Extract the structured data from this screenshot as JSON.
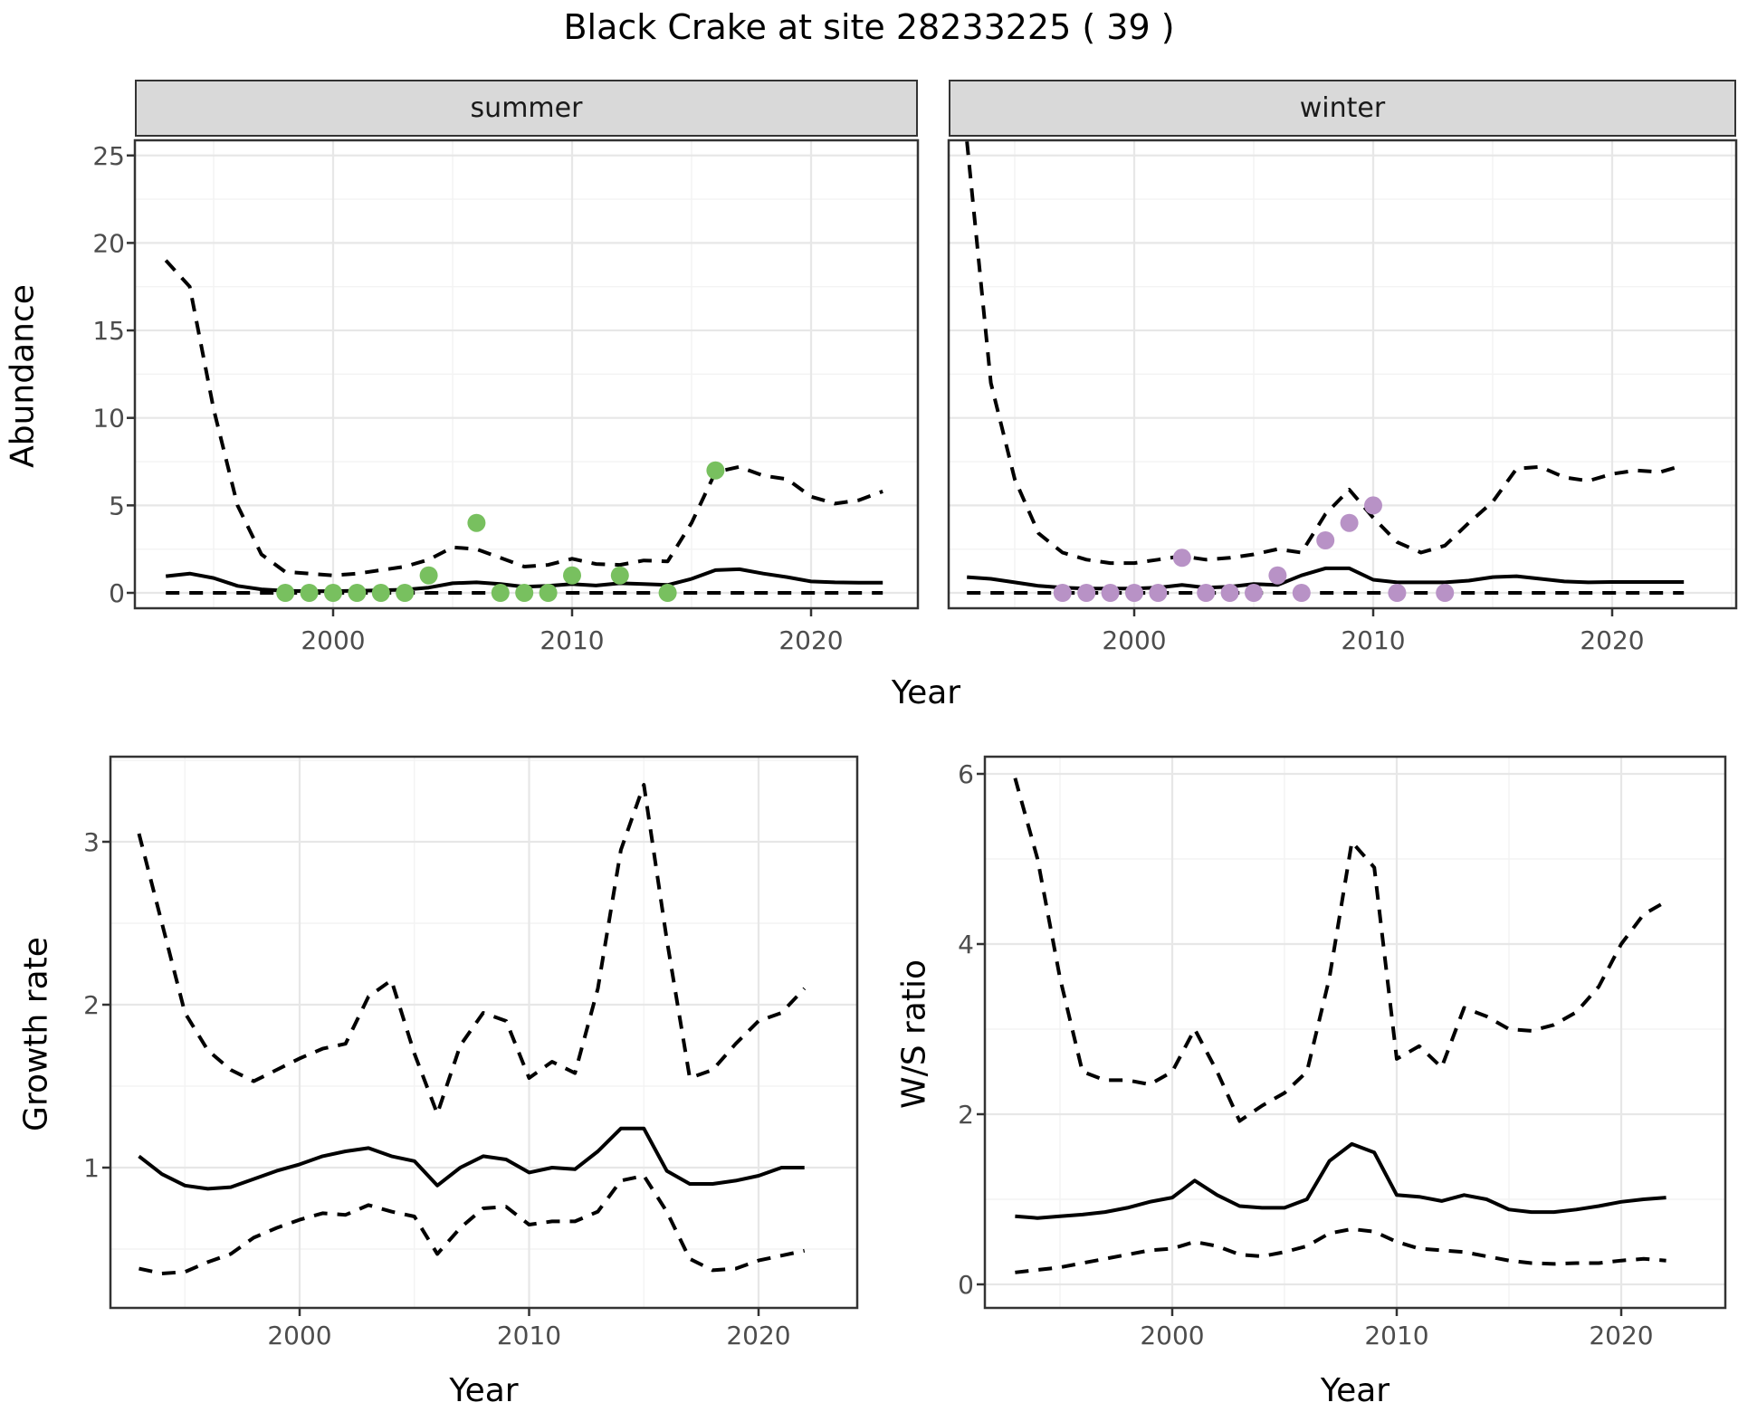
{
  "title": "Black Crake at site 28233225 ( 39 )",
  "point_colors": {
    "summer": "#78C05F",
    "winter": "#B892C6"
  },
  "line_color": "#000000",
  "grid_major_color": "#E7E7E7",
  "grid_minor_color": "#F3F3F3",
  "strip_fill": "#D9D9D9",
  "axis_text_color": "#4D4D4D",
  "chart_data": [
    {
      "id": "abundance-summer",
      "type": "line",
      "strip_label": "summer",
      "xlabel": "Year",
      "ylabel": "Abundance",
      "x_major_ticks": [
        2000,
        2010,
        2020
      ],
      "x_minor_ticks": [
        1995,
        2005,
        2015,
        2025
      ],
      "y_major_ticks": [
        0,
        5,
        10,
        15,
        20,
        25
      ],
      "y_minor_ticks": [
        2.5,
        7.5,
        12.5,
        17.5,
        22.5
      ],
      "show_y_tick_labels": true,
      "ylim": [
        -0.9,
        25.9
      ],
      "years": [
        1993,
        1994,
        1995,
        1996,
        1997,
        1998,
        1999,
        2000,
        2001,
        2002,
        2003,
        2004,
        2005,
        2006,
        2007,
        2008,
        2009,
        2010,
        2011,
        2012,
        2013,
        2014,
        2015,
        2016,
        2017,
        2018,
        2019,
        2020,
        2021,
        2022,
        2023
      ],
      "series": [
        {
          "name": "upper_ci",
          "style": "dashed",
          "values": [
            19,
            17.5,
            10.5,
            5,
            2.2,
            1.2,
            1.1,
            1.0,
            1.1,
            1.3,
            1.5,
            1.9,
            2.6,
            2.5,
            2.0,
            1.5,
            1.6,
            1.95,
            1.65,
            1.6,
            1.85,
            1.8,
            4.0,
            6.9,
            7.2,
            6.7,
            6.5,
            5.5,
            5.1,
            5.3,
            5.8
          ]
        },
        {
          "name": "median",
          "style": "solid",
          "values": [
            0.95,
            1.1,
            0.85,
            0.4,
            0.2,
            0.12,
            0.1,
            0.1,
            0.12,
            0.15,
            0.18,
            0.3,
            0.55,
            0.6,
            0.5,
            0.35,
            0.4,
            0.5,
            0.42,
            0.55,
            0.5,
            0.45,
            0.8,
            1.3,
            1.35,
            1.1,
            0.9,
            0.65,
            0.6,
            0.58,
            0.58
          ]
        },
        {
          "name": "lower_ci",
          "style": "dashed",
          "values": [
            0,
            0,
            0,
            0,
            0,
            0,
            0,
            0,
            0,
            0,
            0,
            0,
            0,
            0,
            0,
            0,
            0,
            0,
            0,
            0,
            0,
            0,
            0,
            0,
            0,
            0,
            0,
            0,
            0,
            0,
            0
          ]
        }
      ],
      "points": {
        "name": "observed_counts",
        "color_key": "summer",
        "data": [
          [
            1998,
            0
          ],
          [
            1999,
            0
          ],
          [
            2000,
            0
          ],
          [
            2001,
            0
          ],
          [
            2002,
            0
          ],
          [
            2003,
            0
          ],
          [
            2004,
            1
          ],
          [
            2006,
            4
          ],
          [
            2007,
            0
          ],
          [
            2008,
            0
          ],
          [
            2009,
            0
          ],
          [
            2010,
            1
          ],
          [
            2012,
            1
          ],
          [
            2014,
            0
          ],
          [
            2016,
            7
          ]
        ]
      }
    },
    {
      "id": "abundance-winter",
      "type": "line",
      "strip_label": "winter",
      "xlabel": "Year",
      "ylabel": "Abundance",
      "x_major_ticks": [
        2000,
        2010,
        2020
      ],
      "x_minor_ticks": [
        1995,
        2005,
        2015,
        2025
      ],
      "y_major_ticks": [
        0,
        5,
        10,
        15,
        20,
        25
      ],
      "y_minor_ticks": [
        2.5,
        7.5,
        12.5,
        17.5,
        22.5
      ],
      "show_y_tick_labels": false,
      "ylim": [
        -0.9,
        25.9
      ],
      "years": [
        1993,
        1994,
        1995,
        1996,
        1997,
        1998,
        1999,
        2000,
        2001,
        2002,
        2003,
        2004,
        2005,
        2006,
        2007,
        2008,
        2009,
        2010,
        2011,
        2012,
        2013,
        2014,
        2015,
        2016,
        2017,
        2018,
        2019,
        2020,
        2021,
        2022,
        2023
      ],
      "series": [
        {
          "name": "upper_ci",
          "style": "dashed",
          "values": [
            25.8,
            12,
            6.5,
            3.4,
            2.3,
            1.9,
            1.7,
            1.7,
            1.9,
            2.1,
            1.9,
            2.0,
            2.2,
            2.5,
            2.3,
            4.5,
            5.9,
            4.3,
            2.9,
            2.3,
            2.7,
            4.0,
            5.2,
            7.1,
            7.2,
            6.6,
            6.4,
            6.8,
            7.0,
            6.9,
            7.3
          ]
        },
        {
          "name": "median",
          "style": "solid",
          "values": [
            0.9,
            0.8,
            0.6,
            0.4,
            0.3,
            0.25,
            0.25,
            0.25,
            0.3,
            0.45,
            0.3,
            0.35,
            0.5,
            0.45,
            1.0,
            1.4,
            1.4,
            0.75,
            0.6,
            0.6,
            0.6,
            0.7,
            0.9,
            0.95,
            0.8,
            0.65,
            0.6,
            0.62,
            0.62,
            0.62,
            0.62
          ]
        },
        {
          "name": "lower_ci",
          "style": "dashed",
          "values": [
            0,
            0,
            0,
            0,
            0,
            0,
            0,
            0,
            0,
            0,
            0,
            0,
            0,
            0,
            0,
            0,
            0,
            0,
            0,
            0,
            0,
            0,
            0,
            0,
            0,
            0,
            0,
            0,
            0,
            0,
            0
          ]
        }
      ],
      "points": {
        "name": "observed_counts",
        "color_key": "winter",
        "data": [
          [
            1997,
            0
          ],
          [
            1998,
            0
          ],
          [
            1999,
            0
          ],
          [
            2000,
            0
          ],
          [
            2001,
            0
          ],
          [
            2002,
            2
          ],
          [
            2003,
            0
          ],
          [
            2004,
            0
          ],
          [
            2005,
            0
          ],
          [
            2006,
            1
          ],
          [
            2007,
            0
          ],
          [
            2008,
            3
          ],
          [
            2009,
            4
          ],
          [
            2010,
            5
          ],
          [
            2011,
            0
          ],
          [
            2013,
            0
          ]
        ]
      }
    },
    {
      "id": "growth-rate",
      "type": "line",
      "strip_label": "",
      "xlabel": "Year",
      "ylabel": "Growth rate",
      "x_major_ticks": [
        2000,
        2010,
        2020
      ],
      "x_minor_ticks": [
        1995,
        2005,
        2015
      ],
      "y_major_ticks": [
        1,
        2,
        3
      ],
      "y_minor_ticks": [
        0.5,
        1.5,
        2.5,
        3.5
      ],
      "show_y_tick_labels": true,
      "ylim": [
        0.14,
        3.52
      ],
      "years": [
        1993,
        1994,
        1995,
        1996,
        1997,
        1998,
        1999,
        2000,
        2001,
        2002,
        2003,
        2004,
        2005,
        2006,
        2007,
        2008,
        2009,
        2010,
        2011,
        2012,
        2013,
        2014,
        2015,
        2016,
        2017,
        2018,
        2019,
        2020,
        2021,
        2022
      ],
      "series": [
        {
          "name": "upper_ci",
          "style": "dashed",
          "values": [
            3.05,
            2.5,
            1.95,
            1.72,
            1.6,
            1.53,
            1.6,
            1.67,
            1.73,
            1.76,
            2.05,
            2.15,
            1.7,
            1.33,
            1.75,
            1.95,
            1.9,
            1.55,
            1.65,
            1.58,
            2.1,
            2.95,
            3.35,
            2.4,
            1.55,
            1.6,
            1.76,
            1.9,
            1.95,
            2.1
          ]
        },
        {
          "name": "median",
          "style": "solid",
          "values": [
            1.07,
            0.96,
            0.89,
            0.87,
            0.88,
            0.93,
            0.98,
            1.02,
            1.07,
            1.1,
            1.12,
            1.07,
            1.04,
            0.89,
            1.0,
            1.07,
            1.05,
            0.97,
            1.0,
            0.99,
            1.1,
            1.24,
            1.24,
            0.98,
            0.9,
            0.9,
            0.92,
            0.95,
            1.0,
            1.0
          ]
        },
        {
          "name": "lower_ci",
          "style": "dashed",
          "values": [
            0.38,
            0.35,
            0.36,
            0.42,
            0.47,
            0.57,
            0.63,
            0.68,
            0.72,
            0.71,
            0.77,
            0.73,
            0.7,
            0.47,
            0.63,
            0.75,
            0.76,
            0.65,
            0.67,
            0.67,
            0.73,
            0.92,
            0.95,
            0.73,
            0.44,
            0.37,
            0.38,
            0.43,
            0.46,
            0.49
          ]
        }
      ],
      "points": null
    },
    {
      "id": "ws-ratio",
      "type": "line",
      "strip_label": "",
      "xlabel": "Year",
      "ylabel": "W/S ratio",
      "x_major_ticks": [
        2000,
        2010,
        2020
      ],
      "x_minor_ticks": [
        1995,
        2005,
        2015
      ],
      "y_major_ticks": [
        0,
        2,
        4,
        6
      ],
      "y_minor_ticks": [
        1,
        3,
        5
      ],
      "show_y_tick_labels": true,
      "ylim": [
        -0.28,
        6.2
      ],
      "years": [
        1993,
        1994,
        1995,
        1996,
        1997,
        1998,
        1999,
        2000,
        2001,
        2002,
        2003,
        2004,
        2005,
        2006,
        2007,
        2008,
        2009,
        2010,
        2011,
        2012,
        2013,
        2014,
        2015,
        2016,
        2017,
        2018,
        2019,
        2020,
        2021,
        2022
      ],
      "series": [
        {
          "name": "upper_ci",
          "style": "dashed",
          "values": [
            5.95,
            5.0,
            3.6,
            2.5,
            2.4,
            2.4,
            2.35,
            2.5,
            3.0,
            2.5,
            1.92,
            2.1,
            2.25,
            2.5,
            3.6,
            5.2,
            4.9,
            2.65,
            2.8,
            2.55,
            3.25,
            3.15,
            3.0,
            2.98,
            3.05,
            3.2,
            3.5,
            4.0,
            4.35,
            4.5
          ]
        },
        {
          "name": "median",
          "style": "solid",
          "values": [
            0.8,
            0.78,
            0.8,
            0.82,
            0.85,
            0.9,
            0.97,
            1.02,
            1.22,
            1.05,
            0.92,
            0.9,
            0.9,
            1.0,
            1.45,
            1.65,
            1.55,
            1.05,
            1.03,
            0.98,
            1.05,
            1.0,
            0.88,
            0.85,
            0.85,
            0.88,
            0.92,
            0.97,
            1.0,
            1.02
          ]
        },
        {
          "name": "lower_ci",
          "style": "dashed",
          "values": [
            0.14,
            0.17,
            0.2,
            0.25,
            0.3,
            0.35,
            0.4,
            0.42,
            0.5,
            0.45,
            0.35,
            0.33,
            0.38,
            0.45,
            0.6,
            0.65,
            0.62,
            0.5,
            0.42,
            0.4,
            0.38,
            0.33,
            0.28,
            0.25,
            0.24,
            0.25,
            0.25,
            0.28,
            0.3,
            0.28
          ]
        }
      ],
      "points": null
    }
  ]
}
